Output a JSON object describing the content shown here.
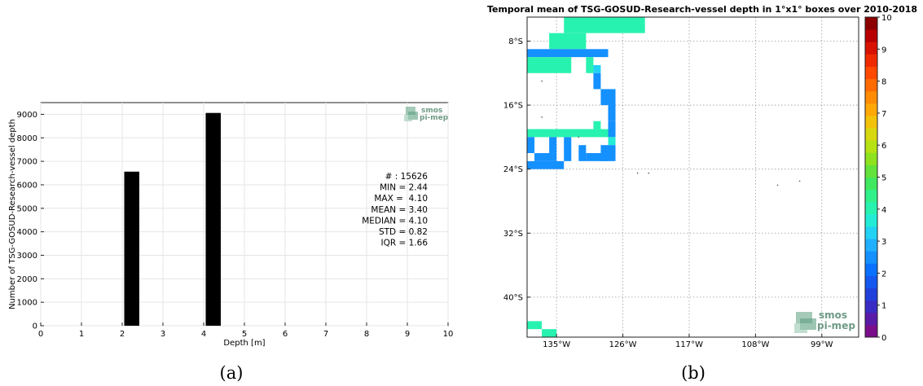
{
  "panel_labels": [
    "(a)",
    "(b)"
  ],
  "chart_data": [
    {
      "type": "bar",
      "xlabel": "Depth [m]",
      "ylabel": "Number of TSG-GOSUD-Research-vessel depth",
      "xlim": [
        0,
        10
      ],
      "ylim": [
        0,
        9500
      ],
      "xticks": [
        "0",
        "1",
        "2",
        "3",
        "4",
        "5",
        "6",
        "7",
        "8",
        "9",
        "10"
      ],
      "yticks": [
        "0",
        "1000",
        "2000",
        "3000",
        "4000",
        "5000",
        "6000",
        "7000",
        "8000",
        "9000"
      ],
      "grid": true,
      "bar_color": "#000000",
      "bars": [
        {
          "x_start": 2.05,
          "x_end": 2.42,
          "value": 6560
        },
        {
          "x_start": 4.05,
          "x_end": 4.42,
          "value": 9060
        }
      ],
      "stats": [
        "# : 15626",
        "MIN = 2.44",
        "MAX =  4.10",
        "MEAN = 3.40",
        "MEDIAN = 4.10",
        "STD = 0.82",
        "IQR = 1.66"
      ],
      "logo": [
        "smos",
        "pi-mep"
      ]
    },
    {
      "type": "heatmap",
      "title": "Temporal mean of TSG-GOSUD-Research-vessel depth in 1°x1° boxes over 2010-2018",
      "lon_range": [
        -139,
        -94
      ],
      "lat_range": [
        -45,
        -5
      ],
      "xticks": [
        {
          "value": -135,
          "label": "135°W"
        },
        {
          "value": -126,
          "label": "126°W"
        },
        {
          "value": -117,
          "label": "117°W"
        },
        {
          "value": -108,
          "label": "108°W"
        },
        {
          "value": -99,
          "label": "99°W"
        }
      ],
      "yticks": [
        {
          "value": -8,
          "label": "8°S"
        },
        {
          "value": -16,
          "label": "16°S"
        },
        {
          "value": -24,
          "label": "24°S"
        },
        {
          "value": -32,
          "label": "32°S"
        },
        {
          "value": -40,
          "label": "40°S"
        }
      ],
      "grid": true,
      "colorbar": {
        "min": 0,
        "max": 10,
        "ticks": [
          "0",
          "1",
          "2",
          "3",
          "4",
          "5",
          "6",
          "7",
          "8",
          "9",
          "10"
        ],
        "colors": [
          "#7a0d8a",
          "#5a1aa8",
          "#3a2bc4",
          "#2040dc",
          "#1458f0",
          "#0a70ff",
          "#1490ff",
          "#20b0ff",
          "#22d2f4",
          "#22ecd6",
          "#28f2b0",
          "#30f08a",
          "#3fe85e",
          "#62e23a",
          "#8ee21e",
          "#b6e214",
          "#d8d810",
          "#f2c20a",
          "#ffa806",
          "#ff8c04",
          "#ff6a02",
          "#ff4800",
          "#f02a00",
          "#d81200",
          "#b80000",
          "#8c0000"
        ]
      },
      "cells": [
        {
          "lon": -134,
          "lat": -7,
          "value": 4.1
        },
        {
          "lon": -132,
          "lat": -6,
          "value": 4.1
        },
        {
          "lon": -129,
          "lat": -6,
          "value": 4.1
        },
        {
          "lon": -126,
          "lat": -5,
          "value": 4.1
        },
        {
          "lon": -136,
          "lat": -8,
          "value": 4.1
        },
        {
          "lon": -138,
          "lat": -10,
          "value": 2.44
        },
        {
          "lon": -137,
          "lat": -11,
          "value": 4.1
        },
        {
          "lon": -134,
          "lat": -10,
          "value": 2.44
        },
        {
          "lon": -132,
          "lat": -10,
          "value": 2.44
        },
        {
          "lon": -133,
          "lat": -11,
          "value": 4.1
        },
        {
          "lon": -131,
          "lat": -11,
          "value": 3.2
        },
        {
          "lon": -131,
          "lat": -12,
          "value": 2.44
        },
        {
          "lon": -130,
          "lat": -13,
          "value": 2.44
        },
        {
          "lon": -129,
          "lat": -14,
          "value": 2.44
        },
        {
          "lon": -128,
          "lat": -16,
          "value": 2.44
        },
        {
          "lon": -129,
          "lat": -16,
          "value": 2.44
        },
        {
          "lon": -128,
          "lat": -18,
          "value": 2.44
        },
        {
          "lon": -137,
          "lat": -19,
          "value": 4.1
        },
        {
          "lon": -132,
          "lat": -20,
          "value": 4.1
        },
        {
          "lon": -129,
          "lat": -19,
          "value": 4.1
        },
        {
          "lon": -128,
          "lat": -20,
          "value": 3.6
        },
        {
          "lon": -137,
          "lat": -21,
          "value": 2.44
        },
        {
          "lon": -136,
          "lat": -20,
          "value": 2.44
        },
        {
          "lon": -134,
          "lat": -21,
          "value": 2.44
        },
        {
          "lon": -132,
          "lat": -22,
          "value": 2.44
        },
        {
          "lon": -129,
          "lat": -22,
          "value": 2.44
        },
        {
          "lon": -137,
          "lat": -23,
          "value": 2.44
        },
        {
          "lon": -134,
          "lat": -24,
          "value": 2.44
        },
        {
          "lon": -137,
          "lat": -44,
          "value": 4.1
        },
        {
          "lon": -135,
          "lat": -45,
          "value": 4.1
        }
      ],
      "logo": [
        "smos",
        "pi-mep"
      ]
    }
  ]
}
